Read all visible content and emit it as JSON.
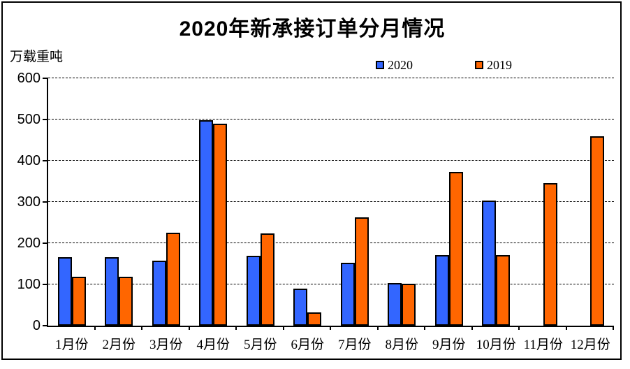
{
  "title": "2020年新承接订单分月情况",
  "y_unit_label": "万载重吨",
  "legend": {
    "items": [
      {
        "label": "2020",
        "color": "#3366ff"
      },
      {
        "label": "2019",
        "color": "#ff6600"
      }
    ]
  },
  "colors": {
    "series_2020": "#3366ff",
    "series_2019": "#ff6600",
    "axis": "#000000",
    "background": "#ffffff"
  },
  "chart_data": {
    "type": "bar",
    "title": "2020年新承接订单分月情况",
    "ylabel": "万载重吨",
    "xlabel": "",
    "categories": [
      "1月份",
      "2月份",
      "3月份",
      "4月份",
      "5月份",
      "6月份",
      "7月份",
      "8月份",
      "9月份",
      "10月份",
      "11月份",
      "12月份"
    ],
    "series": [
      {
        "name": "2020",
        "color": "#3366ff",
        "values": [
          166,
          166,
          157,
          498,
          170,
          89,
          152,
          103,
          172,
          303,
          null,
          null
        ]
      },
      {
        "name": "2019",
        "color": "#ff6600",
        "values": [
          118,
          118,
          225,
          490,
          223,
          33,
          263,
          102,
          373,
          171,
          345,
          460
        ]
      }
    ],
    "ylim": [
      0,
      600
    ],
    "ytick_interval": 100,
    "ytick_labels": [
      "0",
      "100",
      "200",
      "300",
      "400",
      "500",
      "600"
    ],
    "grid": "horizontal-dashed",
    "legend_position": "top-center"
  }
}
